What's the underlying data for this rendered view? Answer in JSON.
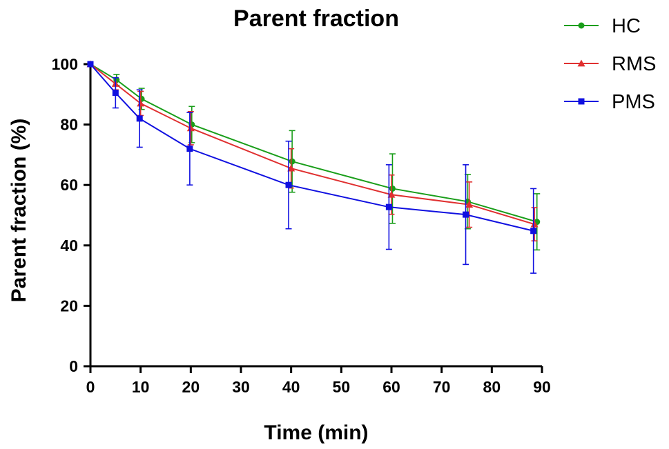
{
  "chart_data": {
    "type": "line",
    "title": "Parent fraction",
    "xlabel": "Time (min)",
    "ylabel": "Parent fraction (%)",
    "xlim": [
      0,
      90
    ],
    "ylim": [
      0,
      100
    ],
    "xticks": [
      0,
      10,
      20,
      30,
      40,
      50,
      60,
      70,
      80,
      90
    ],
    "yticks": [
      0,
      20,
      40,
      60,
      80,
      100
    ],
    "grid": false,
    "legend_position": "top-right",
    "series": [
      {
        "name": "HC",
        "color": "#1a9e1a",
        "marker": "circle",
        "x": [
          0,
          5.2,
          10.2,
          20.2,
          40.2,
          60.2,
          75.2,
          89.0
        ],
        "y": [
          100,
          94.8,
          88.5,
          80.0,
          67.8,
          58.8,
          54.5,
          47.8
        ],
        "err": [
          0,
          1.8,
          3.5,
          6.0,
          10.2,
          11.5,
          9.0,
          9.3
        ]
      },
      {
        "name": "RMS",
        "color": "#e03030",
        "marker": "triangle",
        "x": [
          0,
          5.0,
          10.0,
          20.0,
          40.0,
          60.0,
          75.5,
          88.5
        ],
        "y": [
          100,
          93.5,
          87.0,
          78.8,
          65.5,
          56.8,
          53.5,
          47.0
        ],
        "err": [
          0,
          2.0,
          4.0,
          5.5,
          6.5,
          6.5,
          7.5,
          5.5
        ]
      },
      {
        "name": "PMS",
        "color": "#1010e0",
        "marker": "square",
        "x": [
          0,
          5.0,
          9.8,
          19.8,
          39.5,
          59.5,
          74.8,
          88.3
        ],
        "y": [
          100,
          90.5,
          82.0,
          72.0,
          60.0,
          52.7,
          50.2,
          44.8
        ],
        "err": [
          0,
          5.0,
          9.5,
          12.0,
          14.5,
          14.0,
          16.5,
          14.0
        ]
      }
    ]
  }
}
